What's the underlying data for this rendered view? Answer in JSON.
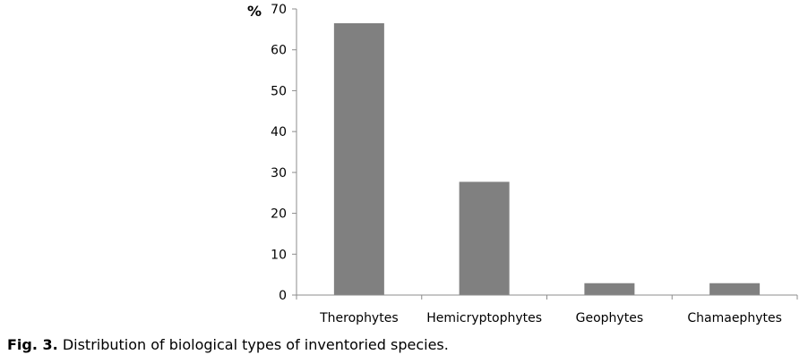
{
  "chart_data": {
    "type": "bar",
    "categories": [
      "Therophytes",
      "Hemicryptophytes",
      "Geophytes",
      "Chamaephytes"
    ],
    "values": [
      66.5,
      27.7,
      2.9,
      2.9
    ],
    "title": "",
    "xlabel": "",
    "ylabel": "%",
    "ylim": [
      0,
      70
    ],
    "yticks": [
      0,
      10,
      20,
      30,
      40,
      50,
      60,
      70
    ],
    "grid": false,
    "legend": "none",
    "bar_color": "#808080",
    "axis_color": "#8c8c8c"
  },
  "caption": {
    "lead": "Fig. 3.",
    "text": " Distribution of biological types of inventoried species."
  }
}
